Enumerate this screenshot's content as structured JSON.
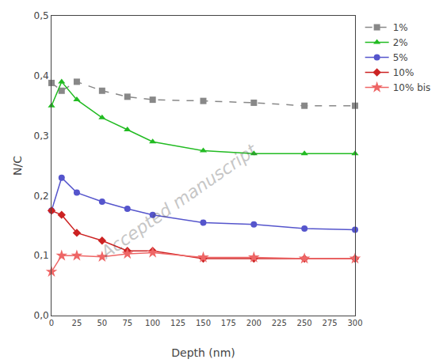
{
  "chart_data": {
    "type": "line",
    "x_label": "Depth (nm)",
    "y_label": "N/C",
    "x": [
      0,
      10,
      25,
      50,
      75,
      100,
      150,
      200,
      250,
      300
    ],
    "series": [
      {
        "name": "1%",
        "color": "#888888",
        "marker": "square",
        "line_style": "dashed",
        "values": [
          0.388,
          0.375,
          0.39,
          0.375,
          0.365,
          0.36,
          0.358,
          0.355,
          0.35,
          0.35
        ]
      },
      {
        "name": "2%",
        "color": "#22bb22",
        "marker": "triangle-up",
        "line_style": "solid",
        "values": [
          0.35,
          0.39,
          0.36,
          0.33,
          0.31,
          0.29,
          0.275,
          0.27,
          0.27,
          0.27
        ]
      },
      {
        "name": "5%",
        "color": "#5555cc",
        "marker": "circle",
        "line_style": "solid",
        "values": [
          0.175,
          0.23,
          0.205,
          0.19,
          0.178,
          0.168,
          0.155,
          0.152,
          0.145,
          0.143
        ]
      },
      {
        "name": "10%",
        "color": "#cc2222",
        "marker": "diamond",
        "line_style": "solid",
        "values": [
          0.175,
          0.168,
          0.138,
          0.125,
          0.108,
          0.108,
          0.095,
          0.095,
          0.095,
          0.095
        ]
      },
      {
        "name": "10% bis",
        "color": "#ee6666",
        "marker": "star",
        "line_style": "solid",
        "values": [
          0.073,
          0.1,
          0.1,
          0.098,
          0.103,
          0.105,
          0.097,
          0.097,
          0.095,
          0.095
        ]
      }
    ],
    "xlim": [
      0,
      300
    ],
    "ylim": [
      0.0,
      0.5
    ],
    "xticks": [
      0,
      25,
      50,
      75,
      100,
      125,
      150,
      175,
      200,
      225,
      250,
      275,
      300
    ],
    "yticks": [
      {
        "value": 0.0,
        "label": "0,0"
      },
      {
        "value": 0.1,
        "label": "0,1"
      },
      {
        "value": 0.2,
        "label": "0,2"
      },
      {
        "value": 0.3,
        "label": "0,3"
      },
      {
        "value": 0.4,
        "label": "0,4"
      },
      {
        "value": 0.5,
        "label": "0,5"
      }
    ],
    "annotations": [
      "Accepted manuscript"
    ],
    "grid": false,
    "legend": "upper right"
  }
}
